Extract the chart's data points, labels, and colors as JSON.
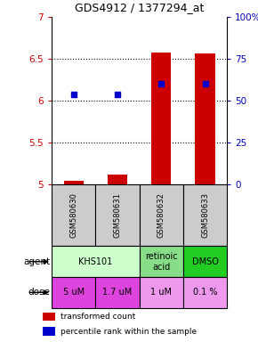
{
  "title": "GDS4912 / 1377294_at",
  "samples": [
    "GSM580630",
    "GSM580631",
    "GSM580632",
    "GSM580633"
  ],
  "red_bars_bottoms": [
    5.0,
    5.0,
    5.0,
    5.0
  ],
  "red_bars_tops": [
    5.05,
    5.12,
    6.58,
    6.57
  ],
  "blue_x": [
    1,
    2,
    3,
    4
  ],
  "blue_y": [
    6.08,
    6.08,
    6.2,
    6.2
  ],
  "ylim": [
    5.0,
    7.0
  ],
  "yticks_left": [
    5.0,
    5.5,
    6.0,
    6.5,
    7.0
  ],
  "ytick_labels_left": [
    "5",
    "5.5",
    "6",
    "6.5",
    "7"
  ],
  "yticks_right": [
    0,
    25,
    50,
    75,
    100
  ],
  "ytick_labels_right": [
    "0",
    "25",
    "50",
    "75",
    "100%"
  ],
  "dotted_lines": [
    5.5,
    6.0,
    6.5
  ],
  "bar_color": "#cc0000",
  "square_color": "#0000cc",
  "left_axis_color": "#cc0000",
  "right_axis_color": "#0000bb",
  "title_color": "#000000",
  "agent_info": [
    {
      "start": 0,
      "end": 2,
      "label": "KHS101",
      "color": "#ccffcc"
    },
    {
      "start": 2,
      "end": 3,
      "label": "retinoic\nacid",
      "color": "#88dd88"
    },
    {
      "start": 3,
      "end": 4,
      "label": "DMSO",
      "color": "#22cc22"
    }
  ],
  "dose_labels": [
    "5 uM",
    "1.7 uM",
    "1 uM",
    "0.1 %"
  ],
  "dose_colors": [
    "#dd44dd",
    "#dd44dd",
    "#ee99ee",
    "#ee99ee"
  ],
  "sample_row_color": "#cccccc",
  "legend": [
    {
      "color": "#cc0000",
      "label": "transformed count"
    },
    {
      "color": "#0000cc",
      "label": "percentile rank within the sample"
    }
  ]
}
